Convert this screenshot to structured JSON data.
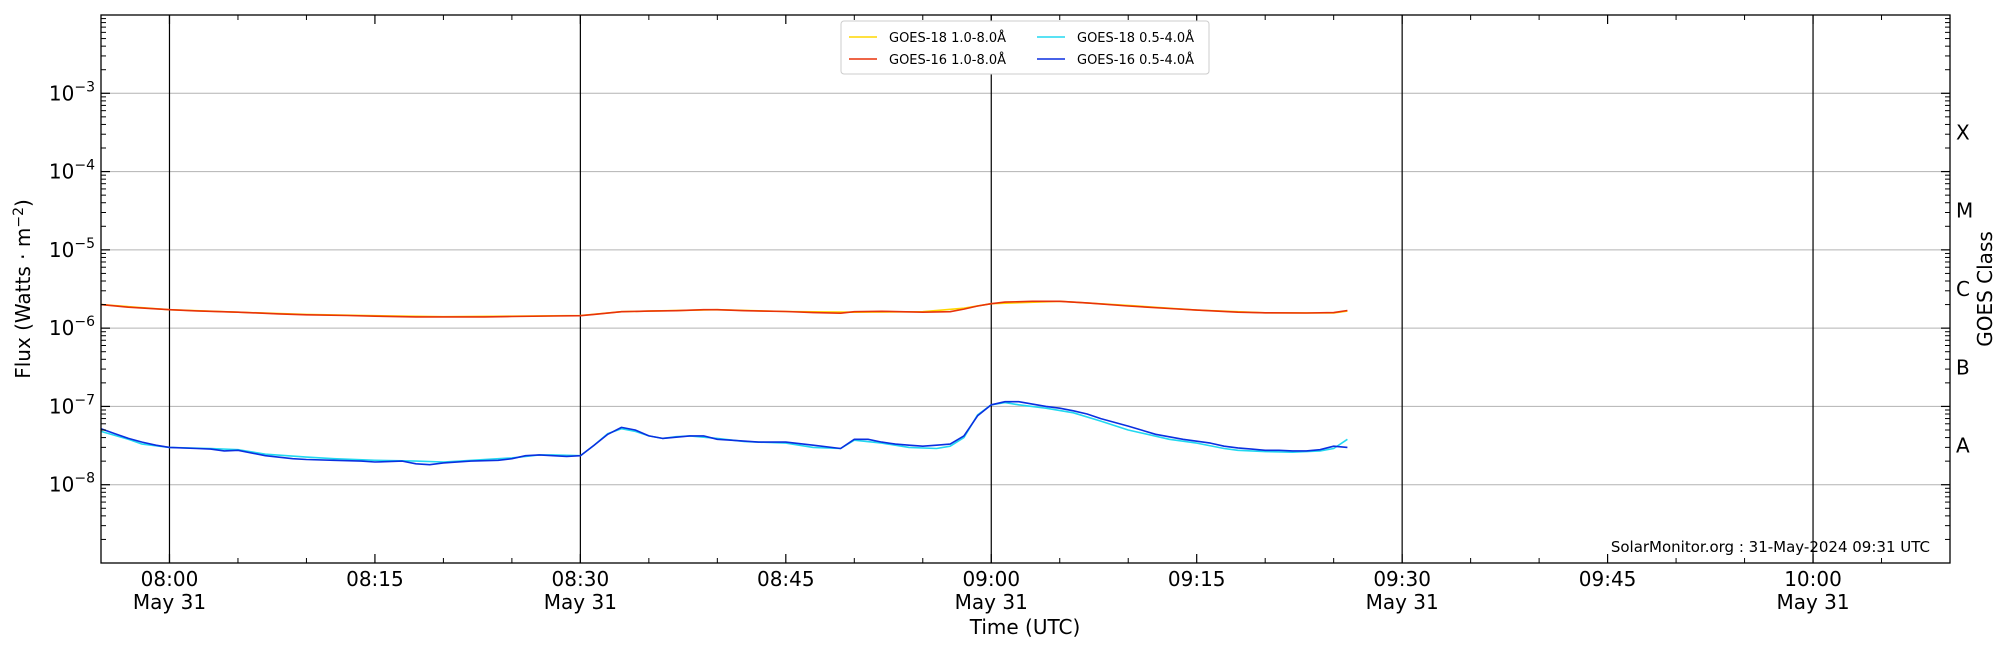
{
  "chart_data": {
    "type": "line",
    "title": "",
    "xlabel": "Time (UTC)",
    "ylabel": "Flux (Watts · m⁻²)",
    "right_ylabel": "GOES Class",
    "yscale": "log",
    "xlim": [
      "07:55",
      "10:10"
    ],
    "ylim": [
      1e-09,
      0.01
    ],
    "grid": "horizontal at each decade",
    "legend_position": "top-center",
    "x_ticks": [
      {
        "time": "08:00",
        "label": "08:00",
        "sub": "May 31"
      },
      {
        "time": "08:15",
        "label": "08:15",
        "sub": ""
      },
      {
        "time": "08:30",
        "label": "08:30",
        "sub": "May 31"
      },
      {
        "time": "08:45",
        "label": "08:45",
        "sub": ""
      },
      {
        "time": "09:00",
        "label": "09:00",
        "sub": "May 31"
      },
      {
        "time": "09:15",
        "label": "09:15",
        "sub": ""
      },
      {
        "time": "09:30",
        "label": "09:30",
        "sub": "May 31"
      },
      {
        "time": "09:45",
        "label": "09:45",
        "sub": ""
      },
      {
        "time": "10:00",
        "label": "10:00",
        "sub": "May 31"
      }
    ],
    "vertical_lines": [
      "08:00",
      "08:30",
      "09:00",
      "09:30",
      "10:00"
    ],
    "y_ticks": [
      {
        "exp": -8,
        "value": 1e-08
      },
      {
        "exp": -7,
        "value": 1e-07
      },
      {
        "exp": -6,
        "value": 1e-06
      },
      {
        "exp": -5,
        "value": 1e-05
      },
      {
        "exp": -4,
        "value": 0.0001
      },
      {
        "exp": -3,
        "value": 0.001
      }
    ],
    "goes_classes": [
      {
        "label": "A",
        "value": 3.16e-08
      },
      {
        "label": "B",
        "value": 3.16e-07
      },
      {
        "label": "C",
        "value": 3.16e-06
      },
      {
        "label": "M",
        "value": 3.16e-05
      },
      {
        "label": "X",
        "value": 0.000316
      }
    ],
    "series": [
      {
        "name": "GOES-18 1.0-8.0Å",
        "color": "#ffd700",
        "x": [
          "07:55",
          "08:00",
          "08:05",
          "08:10",
          "08:15",
          "08:20",
          "08:25",
          "08:30",
          "08:33",
          "08:35",
          "08:40",
          "08:45",
          "08:50",
          "08:55",
          "08:58",
          "09:00",
          "09:05",
          "09:10",
          "09:15",
          "09:20",
          "09:25",
          "09:26"
        ],
        "y": [
          2e-06,
          1.72e-06,
          1.6e-06,
          1.5e-06,
          1.44e-06,
          1.4e-06,
          1.42e-06,
          1.45e-06,
          1.62e-06,
          1.65e-06,
          1.72e-06,
          1.63e-06,
          1.6e-06,
          1.62e-06,
          1.8e-06,
          2.05e-06,
          2.2e-06,
          1.95e-06,
          1.7e-06,
          1.57e-06,
          1.56e-06,
          1.65e-06
        ]
      },
      {
        "name": "GOES-16 1.0-8.0Å",
        "color": "#e8320a",
        "x": [
          "07:55",
          "07:57",
          "08:00",
          "08:02",
          "08:05",
          "08:08",
          "08:10",
          "08:13",
          "08:15",
          "08:18",
          "08:20",
          "08:23",
          "08:25",
          "08:28",
          "08:30",
          "08:31",
          "08:33",
          "08:35",
          "08:37",
          "08:39",
          "08:40",
          "08:42",
          "08:45",
          "08:47",
          "08:49",
          "08:50",
          "08:52",
          "08:55",
          "08:57",
          "08:58",
          "08:59",
          "09:00",
          "09:01",
          "09:03",
          "09:05",
          "09:07",
          "09:10",
          "09:13",
          "09:15",
          "09:18",
          "09:20",
          "09:23",
          "09:25",
          "09:26"
        ],
        "y": [
          2e-06,
          1.85e-06,
          1.72e-06,
          1.66e-06,
          1.6e-06,
          1.52e-06,
          1.48e-06,
          1.45e-06,
          1.42e-06,
          1.39e-06,
          1.39e-06,
          1.39e-06,
          1.41e-06,
          1.43e-06,
          1.44e-06,
          1.5e-06,
          1.62e-06,
          1.65e-06,
          1.67e-06,
          1.72e-06,
          1.72e-06,
          1.67e-06,
          1.63e-06,
          1.58e-06,
          1.55e-06,
          1.62e-06,
          1.64e-06,
          1.6e-06,
          1.62e-06,
          1.75e-06,
          1.92e-06,
          2.05e-06,
          2.15e-06,
          2.2e-06,
          2.2e-06,
          2.1e-06,
          1.92e-06,
          1.78e-06,
          1.7e-06,
          1.6e-06,
          1.57e-06,
          1.56e-06,
          1.58e-06,
          1.68e-06
        ]
      },
      {
        "name": "GOES-18 0.5-4.0Å",
        "color": "#22d8f0",
        "x": [
          "07:55",
          "07:57",
          "07:58",
          "08:00",
          "08:03",
          "08:05",
          "08:07",
          "08:10",
          "08:12",
          "08:15",
          "08:18",
          "08:20",
          "08:23",
          "08:25",
          "08:27",
          "08:28",
          "08:30",
          "08:31",
          "08:32",
          "08:33",
          "08:34",
          "08:35",
          "08:36",
          "08:37",
          "08:38",
          "08:40",
          "08:42",
          "08:45",
          "08:47",
          "08:49",
          "08:50",
          "08:52",
          "08:54",
          "08:56",
          "08:57",
          "08:58",
          "08:59",
          "09:00",
          "09:01",
          "09:02",
          "09:04",
          "09:06",
          "09:08",
          "09:10",
          "09:13",
          "09:15",
          "09:17",
          "09:18",
          "09:20",
          "09:22",
          "09:24",
          "09:25",
          "09:26"
        ],
        "y": [
          4.8e-08,
          3.8e-08,
          3.3e-08,
          3e-08,
          2.9e-08,
          2.8e-08,
          2.45e-08,
          2.25e-08,
          2.15e-08,
          2.05e-08,
          2e-08,
          1.95e-08,
          2.1e-08,
          2.2e-08,
          2.4e-08,
          2.4e-08,
          2.35e-08,
          3.2e-08,
          4.5e-08,
          5.2e-08,
          4.8e-08,
          4.2e-08,
          3.9e-08,
          4.1e-08,
          4.2e-08,
          3.9e-08,
          3.55e-08,
          3.4e-08,
          3e-08,
          2.9e-08,
          3.7e-08,
          3.4e-08,
          3e-08,
          2.9e-08,
          3.1e-08,
          4e-08,
          7.8e-08,
          1.05e-07,
          1.12e-07,
          1.05e-07,
          9.5e-08,
          8.3e-08,
          6.5e-08,
          5e-08,
          3.8e-08,
          3.4e-08,
          2.9e-08,
          2.75e-08,
          2.65e-08,
          2.6e-08,
          2.7e-08,
          2.9e-08,
          3.8e-08
        ]
      },
      {
        "name": "GOES-16 0.5-4.0Å",
        "color": "#0a2fe0",
        "x": [
          "07:55",
          "07:56",
          "07:57",
          "07:58",
          "07:59",
          "08:00",
          "08:02",
          "08:03",
          "08:04",
          "08:05",
          "08:07",
          "08:09",
          "08:10",
          "08:12",
          "08:14",
          "08:15",
          "08:17",
          "08:18",
          "08:19",
          "08:20",
          "08:22",
          "08:24",
          "08:25",
          "08:26",
          "08:27",
          "08:28",
          "08:29",
          "08:30",
          "08:31",
          "08:32",
          "08:33",
          "08:34",
          "08:35",
          "08:36",
          "08:38",
          "08:39",
          "08:40",
          "08:41",
          "08:43",
          "08:45",
          "08:47",
          "08:49",
          "08:50",
          "08:51",
          "08:52",
          "08:53",
          "08:54",
          "08:55",
          "08:56",
          "08:57",
          "08:58",
          "08:59",
          "09:00",
          "09:01",
          "09:02",
          "09:04",
          "09:05",
          "09:06",
          "09:07",
          "09:08",
          "09:10",
          "09:12",
          "09:14",
          "09:15",
          "09:16",
          "09:17",
          "09:18",
          "09:19",
          "09:20",
          "09:21",
          "09:22",
          "09:23",
          "09:24",
          "09:25",
          "09:26"
        ],
        "y": [
          5.2e-08,
          4.5e-08,
          3.9e-08,
          3.5e-08,
          3.2e-08,
          3e-08,
          2.9e-08,
          2.85e-08,
          2.7e-08,
          2.75e-08,
          2.35e-08,
          2.15e-08,
          2.1e-08,
          2.05e-08,
          2e-08,
          1.95e-08,
          2e-08,
          1.85e-08,
          1.8e-08,
          1.9e-08,
          2e-08,
          2.05e-08,
          2.15e-08,
          2.35e-08,
          2.4e-08,
          2.35e-08,
          2.3e-08,
          2.35e-08,
          3.2e-08,
          4.4e-08,
          5.4e-08,
          5e-08,
          4.2e-08,
          3.9e-08,
          4.2e-08,
          4.2e-08,
          3.8e-08,
          3.7e-08,
          3.5e-08,
          3.5e-08,
          3.2e-08,
          2.9e-08,
          3.8e-08,
          3.8e-08,
          3.5e-08,
          3.3e-08,
          3.2e-08,
          3.1e-08,
          3.2e-08,
          3.3e-08,
          4.2e-08,
          7.6e-08,
          1.05e-07,
          1.15e-07,
          1.15e-07,
          1e-07,
          9.5e-08,
          8.8e-08,
          8e-08,
          7e-08,
          5.6e-08,
          4.4e-08,
          3.8e-08,
          3.6e-08,
          3.4e-08,
          3.1e-08,
          2.95e-08,
          2.85e-08,
          2.75e-08,
          2.75e-08,
          2.7e-08,
          2.7e-08,
          2.8e-08,
          3.1e-08,
          3e-08
        ]
      }
    ],
    "legend": {
      "columns": [
        [
          "GOES-18 1.0-8.0Å",
          "GOES-16 1.0-8.0Å"
        ],
        [
          "GOES-18 0.5-4.0Å",
          "GOES-16 0.5-4.0Å"
        ]
      ]
    },
    "annotation": "SolarMonitor.org : 31-May-2024 09:31 UTC"
  }
}
